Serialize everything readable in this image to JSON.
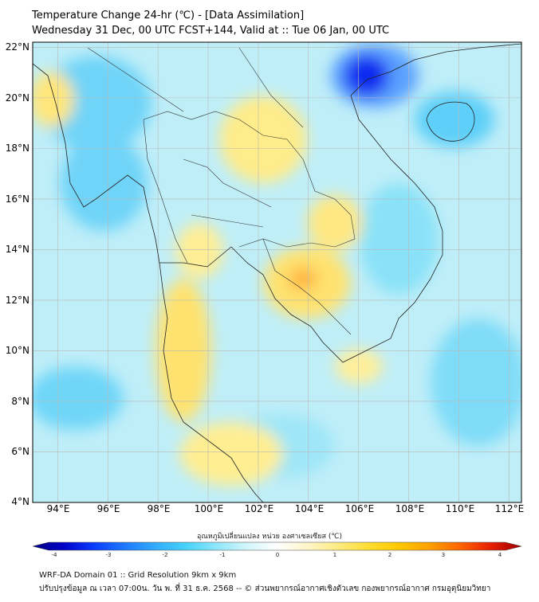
{
  "title_line1": "Temperature Change 24-hr (℃) - [Data Assimilation]",
  "title_line2": "Wednesday 31 Dec, 00 UTC FCST+144, Valid at :: Tue 06 Jan, 00 UTC",
  "map": {
    "lat_labels": [
      "22°N",
      "20°N",
      "18°N",
      "16°N",
      "14°N",
      "12°N",
      "10°N",
      "8°N",
      "6°N",
      "4°N"
    ],
    "lon_labels": [
      "94°E",
      "96°E",
      "98°E",
      "100°E",
      "102°E",
      "104°E",
      "106°E",
      "108°E",
      "110°E",
      "112°E"
    ],
    "extent": {
      "lon_min": 93,
      "lon_max": 112.5,
      "lat_min": 4,
      "lat_max": 22.2
    },
    "background_color": "#bfeef8"
  },
  "colorbar": {
    "title": "อุณหภูมิเปลี่ยนแปลง หน่วย องศาเซลเซียส (℃)",
    "ticks": [
      "-4",
      "-3",
      "-2",
      "-1",
      "0",
      "1",
      "2",
      "3",
      "4"
    ],
    "min": -4,
    "max": 4,
    "colors": [
      "#000080",
      "#0000c8",
      "#0a3cff",
      "#1e78ff",
      "#32aaff",
      "#46d2fa",
      "#8ce6fa",
      "#d2f5fa",
      "#ffffff",
      "#fff5c8",
      "#ffeb82",
      "#ffdc32",
      "#ffc800",
      "#ffa000",
      "#ff6400",
      "#e61e00",
      "#a00000"
    ]
  },
  "footer_line1": "WRF-DA Domain 01 :: Grid Resolution 9km x 9km",
  "footer_line2": "ปรับปรุงข้อมูล ณ เวลา 07:00น. วัน พ. ที่ 31 ธ.ค. 2568 -- © ส่วนพยากรณ์อากาศเชิงตัวเลข กองพยากรณ์อากาศ กรมอุตุนิยมวิทยา"
}
